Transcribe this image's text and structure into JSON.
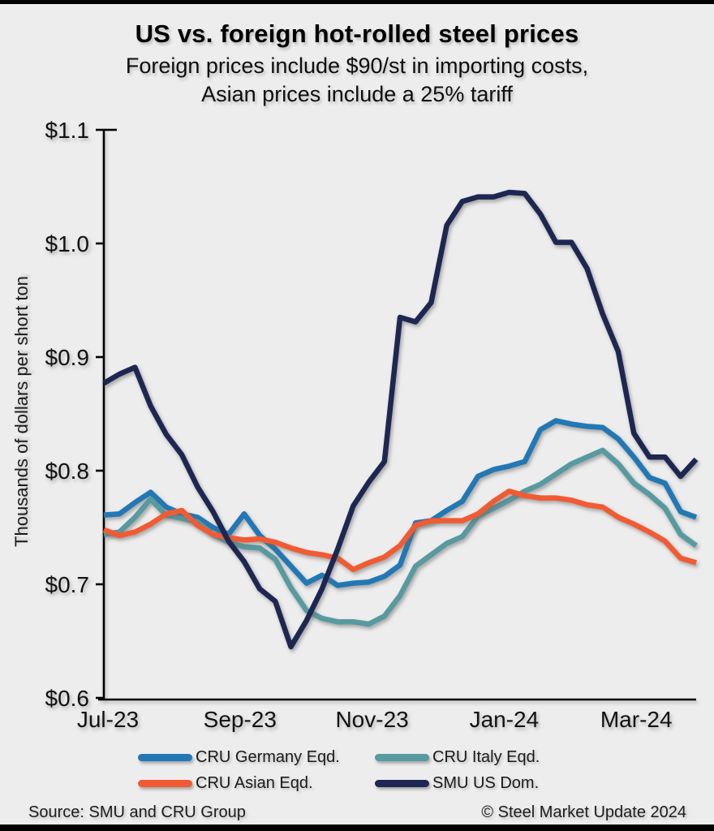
{
  "title": "US vs. foreign hot-rolled steel prices",
  "subtitle_line1": "Foreign prices include $90/st in importing costs,",
  "subtitle_line2": "Asian prices include a 25% tariff",
  "footer": {
    "source": "Source: SMU and CRU Group",
    "copyright": "© Steel Market Update 2024"
  },
  "colors": {
    "background": "#ededed",
    "border": "#000000",
    "text": "#111111",
    "germany_blue": "#2278b5",
    "italy_teal": "#579aa0",
    "asian_orange": "#f15b33",
    "smu_navy": "#1d2752"
  },
  "chart_data": {
    "type": "line",
    "title": "US vs. foreign hot-rolled steel prices",
    "xlabel": "",
    "ylabel": "Thousands of dollars per short ton",
    "x_unit": "weekly observations, Jul-23 through Apr-24",
    "x_ticks": [
      "Jul-23",
      "Sep-23",
      "Nov-23",
      "Jan-24",
      "Mar-24"
    ],
    "y_ticks": [
      "$1.1",
      "$1.0",
      "$0.9",
      "$0.8",
      "$0.7",
      "$0.6"
    ],
    "ylim": [
      0.6,
      1.1
    ],
    "grid": false,
    "legend_position": "bottom",
    "series": [
      {
        "name": "CRU Germany Eqd.",
        "color": "#2278b5",
        "values": [
          0.761,
          0.762,
          0.772,
          0.781,
          0.768,
          0.762,
          0.759,
          0.75,
          0.744,
          0.762,
          0.743,
          0.731,
          0.716,
          0.701,
          0.708,
          0.699,
          0.701,
          0.702,
          0.707,
          0.717,
          0.754,
          0.756,
          0.765,
          0.773,
          0.795,
          0.801,
          0.804,
          0.808,
          0.836,
          0.844,
          0.841,
          0.839,
          0.838,
          0.828,
          0.812,
          0.794,
          0.789,
          0.764,
          0.759
        ]
      },
      {
        "name": "CRU Italy Eqd.",
        "color": "#579aa0",
        "values": [
          0.744,
          0.746,
          0.759,
          0.775,
          0.761,
          0.758,
          0.755,
          0.744,
          0.737,
          0.733,
          0.732,
          0.722,
          0.697,
          0.677,
          0.67,
          0.667,
          0.667,
          0.665,
          0.672,
          0.69,
          0.716,
          0.726,
          0.736,
          0.742,
          0.76,
          0.767,
          0.774,
          0.782,
          0.788,
          0.797,
          0.806,
          0.812,
          0.818,
          0.806,
          0.789,
          0.779,
          0.767,
          0.744,
          0.734
        ]
      },
      {
        "name": "CRU Asian Eqd.",
        "color": "#f15b33",
        "values": [
          0.748,
          0.743,
          0.746,
          0.753,
          0.762,
          0.765,
          0.752,
          0.744,
          0.741,
          0.739,
          0.74,
          0.737,
          0.732,
          0.728,
          0.726,
          0.723,
          0.713,
          0.719,
          0.724,
          0.734,
          0.752,
          0.756,
          0.756,
          0.756,
          0.762,
          0.773,
          0.782,
          0.778,
          0.776,
          0.776,
          0.774,
          0.77,
          0.768,
          0.759,
          0.753,
          0.746,
          0.738,
          0.723,
          0.719
        ]
      },
      {
        "name": "SMU US Dom.",
        "color": "#1d2752",
        "values": [
          0.877,
          0.885,
          0.891,
          0.857,
          0.832,
          0.814,
          0.786,
          0.764,
          0.738,
          0.72,
          0.696,
          0.685,
          0.645,
          0.668,
          0.696,
          0.731,
          0.769,
          0.79,
          0.808,
          0.935,
          0.931,
          0.948,
          1.016,
          1.037,
          1.041,
          1.041,
          1.045,
          1.044,
          1.026,
          1.001,
          1.001,
          0.978,
          0.938,
          0.905,
          0.833,
          0.812,
          0.812,
          0.795,
          0.81
        ]
      }
    ]
  }
}
